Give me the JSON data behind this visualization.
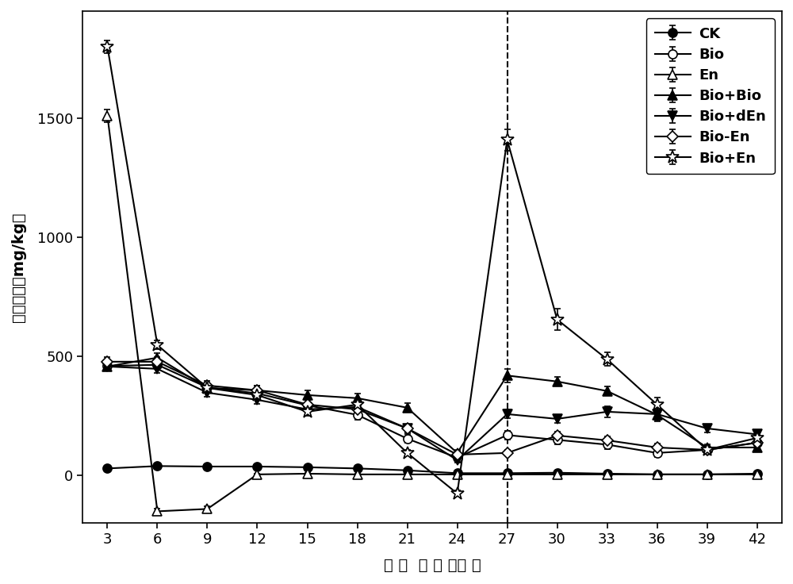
{
  "x": [
    3,
    6,
    9,
    12,
    15,
    18,
    21,
    24,
    27,
    30,
    33,
    36,
    39,
    42
  ],
  "series_order": [
    "CK",
    "Bio",
    "En",
    "Bio+Bio",
    "Bio+dEn",
    "Bio-En",
    "Bio+En"
  ],
  "series": {
    "CK": {
      "y": [
        30,
        40,
        38,
        38,
        35,
        30,
        22,
        10,
        10,
        12,
        8,
        5,
        5,
        8
      ],
      "yerr": [
        4,
        4,
        4,
        4,
        4,
        4,
        4,
        4,
        4,
        4,
        4,
        4,
        4,
        4
      ],
      "marker": "o",
      "filled": true,
      "label": "CK"
    },
    "Bio": {
      "y": [
        460,
        465,
        370,
        345,
        295,
        255,
        155,
        75,
        170,
        150,
        130,
        95,
        108,
        138
      ],
      "yerr": [
        18,
        18,
        18,
        18,
        22,
        22,
        18,
        12,
        18,
        18,
        18,
        18,
        18,
        18
      ],
      "marker": "o",
      "filled": false,
      "label": "Bio"
    },
    "En": {
      "y": [
        1510,
        -150,
        -140,
        5,
        8,
        5,
        5,
        5,
        5,
        5,
        5,
        5,
        5,
        5
      ],
      "yerr": [
        25,
        10,
        10,
        4,
        4,
        4,
        4,
        4,
        4,
        4,
        4,
        4,
        4,
        4
      ],
      "marker": "^",
      "filled": false,
      "label": "En"
    },
    "Bio+Bio": {
      "y": [
        458,
        495,
        368,
        358,
        338,
        325,
        285,
        95,
        420,
        395,
        355,
        255,
        118,
        118
      ],
      "yerr": [
        18,
        18,
        18,
        18,
        18,
        18,
        18,
        12,
        28,
        18,
        18,
        28,
        12,
        12
      ],
      "marker": "^",
      "filled": true,
      "label": "Bio+Bio"
    },
    "Bio+dEn": {
      "y": [
        458,
        448,
        348,
        318,
        278,
        288,
        198,
        65,
        258,
        238,
        268,
        258,
        198,
        173
      ],
      "yerr": [
        18,
        18,
        18,
        18,
        18,
        18,
        18,
        12,
        18,
        18,
        22,
        28,
        18,
        18
      ],
      "marker": "v",
      "filled": true,
      "label": "Bio+dEn"
    },
    "Bio-En": {
      "y": [
        478,
        478,
        378,
        358,
        298,
        278,
        198,
        88,
        95,
        168,
        148,
        118,
        108,
        138
      ],
      "yerr": [
        18,
        18,
        18,
        18,
        18,
        18,
        18,
        12,
        12,
        18,
        18,
        18,
        18,
        18
      ],
      "marker": "D",
      "filled": false,
      "label": "Bio-En"
    },
    "Bio+En": {
      "y": [
        1800,
        548,
        368,
        338,
        268,
        298,
        95,
        -75,
        1410,
        655,
        488,
        298,
        108,
        158
      ],
      "yerr": [
        28,
        18,
        18,
        18,
        18,
        18,
        12,
        12,
        45,
        45,
        28,
        28,
        12,
        12
      ],
      "marker": "*",
      "filled": false,
      "label": "Bio+En"
    }
  },
  "xlabel": "处理时间（天）",
  "ylabel_top": "(第 mg/kg)",
  "ylabel_chinese": "降解速率",
  "xticks": [
    3,
    6,
    9,
    12,
    15,
    18,
    21,
    24,
    27,
    30,
    33,
    36,
    39,
    42
  ],
  "yticks": [
    0,
    500,
    1000,
    1500
  ],
  "ylim": [
    -200,
    1950
  ],
  "xlim": [
    1.5,
    43.5
  ],
  "vline_x": 27,
  "linewidth": 1.5,
  "markersize": 8,
  "capsize": 3,
  "elinewidth": 1.2
}
